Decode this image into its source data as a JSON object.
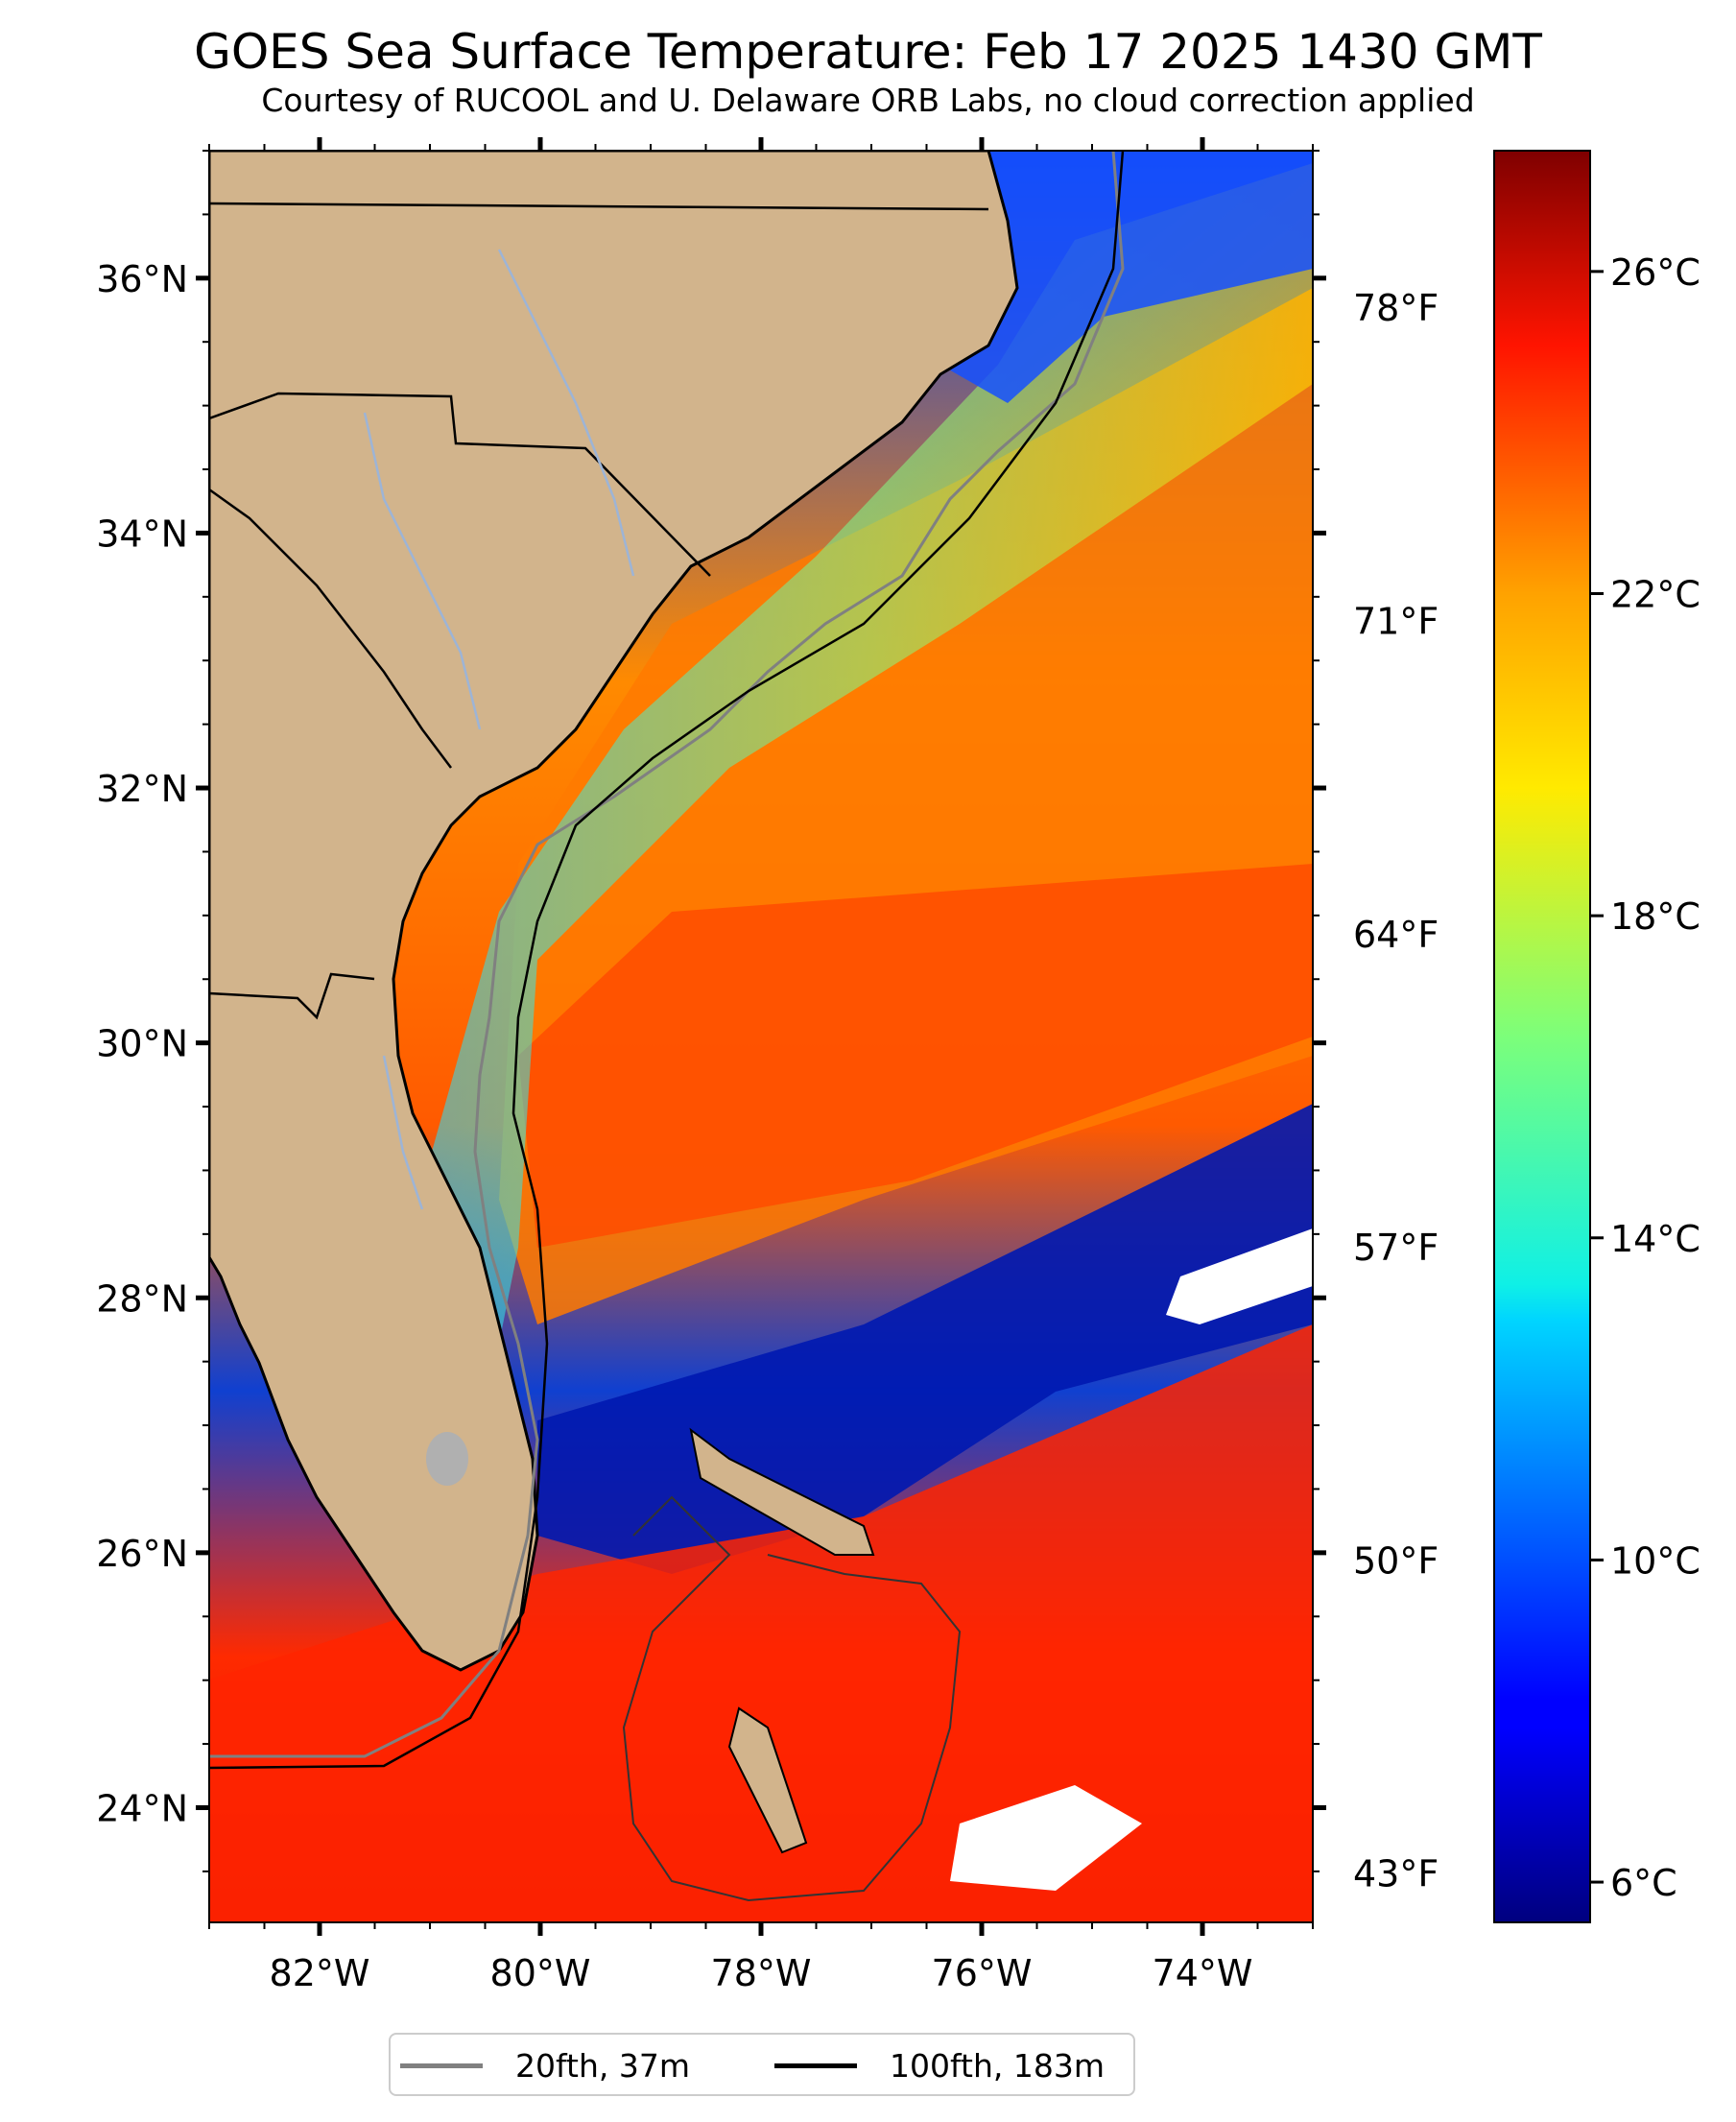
{
  "header": {
    "title": "GOES Sea Surface Temperature: Feb 17 2025 1430 GMT",
    "subtitle": "Courtesy of RUCOOL and U. Delaware ORB Labs, no cloud correction applied"
  },
  "map": {
    "lon_range": [
      -83.0,
      -73.0
    ],
    "lat_range": [
      23.1,
      37.0
    ],
    "lon_ticks": [
      {
        "value": -82,
        "label": "82°W"
      },
      {
        "value": -80,
        "label": "80°W"
      },
      {
        "value": -78,
        "label": "78°W"
      },
      {
        "value": -76,
        "label": "76°W"
      },
      {
        "value": -74,
        "label": "74°W"
      }
    ],
    "lat_ticks": [
      {
        "value": 36,
        "label": "36°N"
      },
      {
        "value": 34,
        "label": "34°N"
      },
      {
        "value": 32,
        "label": "32°N"
      },
      {
        "value": 30,
        "label": "30°N"
      },
      {
        "value": 28,
        "label": "28°N"
      },
      {
        "value": 26,
        "label": "26°N"
      },
      {
        "value": 24,
        "label": "24°N"
      }
    ],
    "fahrenheit_ticks": [
      {
        "value": 78,
        "label": "78°F"
      },
      {
        "value": 71,
        "label": "71°F"
      },
      {
        "value": 64,
        "label": "64°F"
      },
      {
        "value": 57,
        "label": "57°F"
      },
      {
        "value": 50,
        "label": "50°F"
      },
      {
        "value": 43,
        "label": "43°F"
      }
    ],
    "land_color": "#d2b48c",
    "river_color": "#9db4d6",
    "no_data_color": "#ffffff"
  },
  "colorbar": {
    "colormap": "jet",
    "range_c": [
      5.5,
      27.5
    ],
    "ticks": [
      {
        "value": 26,
        "label": "26°C"
      },
      {
        "value": 22,
        "label": "22°C"
      },
      {
        "value": 18,
        "label": "18°C"
      },
      {
        "value": 14,
        "label": "14°C"
      },
      {
        "value": 10,
        "label": "10°C"
      },
      {
        "value": 6,
        "label": "6°C"
      }
    ]
  },
  "legend": {
    "items": [
      {
        "label": "20fth, 37m",
        "color": "#808080"
      },
      {
        "label": "100fth, 183m",
        "color": "#000000"
      }
    ]
  }
}
